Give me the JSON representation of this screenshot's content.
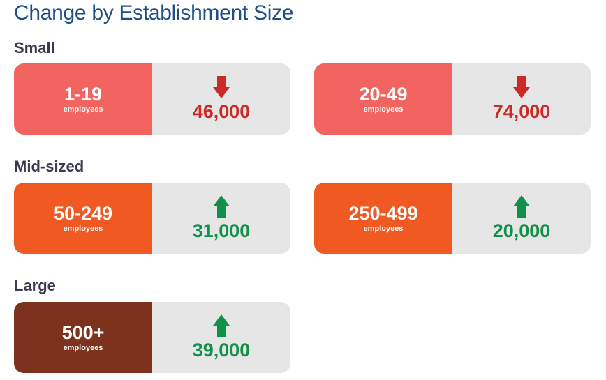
{
  "title": "Change by Establishment Size",
  "colors": {
    "small": "#f2645f",
    "mid": "#f05a22",
    "large": "#7d321e",
    "decrease": "#cc2a27",
    "increase": "#11904a"
  },
  "groups": [
    {
      "label": "Small",
      "cards": [
        {
          "range": "1-19",
          "unit": "employees",
          "direction": "down",
          "value": "46,000"
        },
        {
          "range": "20-49",
          "unit": "employees",
          "direction": "down",
          "value": "74,000"
        }
      ]
    },
    {
      "label": "Mid-sized",
      "cards": [
        {
          "range": "50-249",
          "unit": "employees",
          "direction": "up",
          "value": "31,000"
        },
        {
          "range": "250-499",
          "unit": "employees",
          "direction": "up",
          "value": "20,000"
        }
      ]
    },
    {
      "label": "Large",
      "cards": [
        {
          "range": "500+",
          "unit": "employees",
          "direction": "up",
          "value": "39,000"
        }
      ]
    }
  ]
}
